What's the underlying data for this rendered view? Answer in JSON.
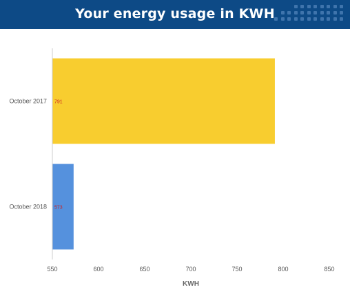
{
  "header": {
    "title": "Your energy usage in KWH",
    "background": "#0d4a86",
    "decoration": "dot-grid"
  },
  "chart_data": {
    "type": "bar",
    "orientation": "horizontal",
    "title": "Your energy usage in KWH",
    "categories": [
      "October 2017",
      "October 2018"
    ],
    "values": [
      791,
      573
    ],
    "data_labels": [
      "791",
      "573"
    ],
    "bar_colors": [
      "#f8cd2f",
      "#5591dd"
    ],
    "label_color": "#cc2222",
    "xlabel": "KWH",
    "ylabel": "",
    "xlim": [
      550,
      850
    ],
    "xticks": [
      550,
      600,
      650,
      700,
      750,
      800,
      850
    ],
    "grid": false,
    "legend": "none"
  }
}
